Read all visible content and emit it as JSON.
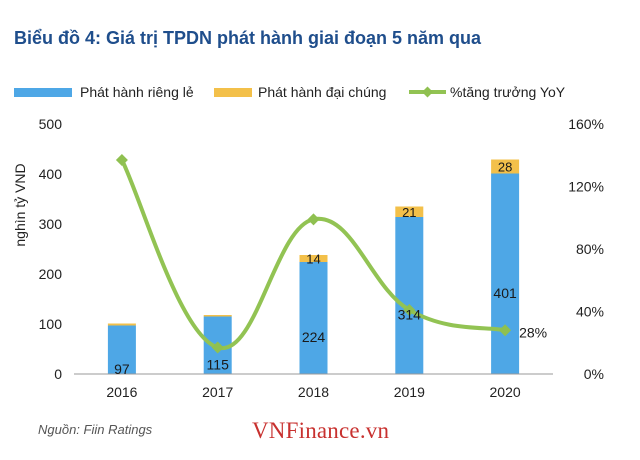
{
  "title": "Biểu đồ 4: Giá trị TPDN phát hành giai đoạn 5 năm qua",
  "source": "Nguồn: Fiin Ratings",
  "watermark": "VNFinance.vn",
  "colors": {
    "private": "#4ea7e6",
    "public": "#f3c04a",
    "growth": "#92c353",
    "growth_marker": "#8fc050",
    "axis_text": "#222222"
  },
  "chart_data": {
    "type": "bar",
    "stacked": true,
    "categories": [
      "2016",
      "2017",
      "2018",
      "2019",
      "2020"
    ],
    "series": [
      {
        "name": "Phát hành riêng lẻ",
        "type": "bar",
        "axis": "left",
        "values": [
          97,
          115,
          224,
          314,
          401
        ],
        "labels": [
          "97",
          "115",
          "224",
          "314",
          "401"
        ]
      },
      {
        "name": "Phát hành đại chúng",
        "type": "bar",
        "axis": "left",
        "values": [
          4,
          3,
          14,
          21,
          28
        ],
        "labels": [
          "",
          "",
          "14",
          "21",
          "28"
        ]
      },
      {
        "name": "%tăng trưởng YoY",
        "type": "line",
        "smooth": true,
        "axis": "right",
        "values": [
          1.37,
          0.17,
          0.99,
          0.41,
          0.28
        ],
        "labels": [
          "",
          "",
          "",
          "",
          "28%"
        ]
      }
    ],
    "ylabel": "nghìn tỷ VND",
    "ylim": [
      0,
      500
    ],
    "yticks": [
      "0",
      "100",
      "200",
      "300",
      "400",
      "500"
    ],
    "y2lim": [
      0,
      1.6
    ],
    "y2ticks": [
      "0%",
      "40%",
      "80%",
      "120%",
      "160%"
    ],
    "legend_position": "top",
    "grid": false
  }
}
